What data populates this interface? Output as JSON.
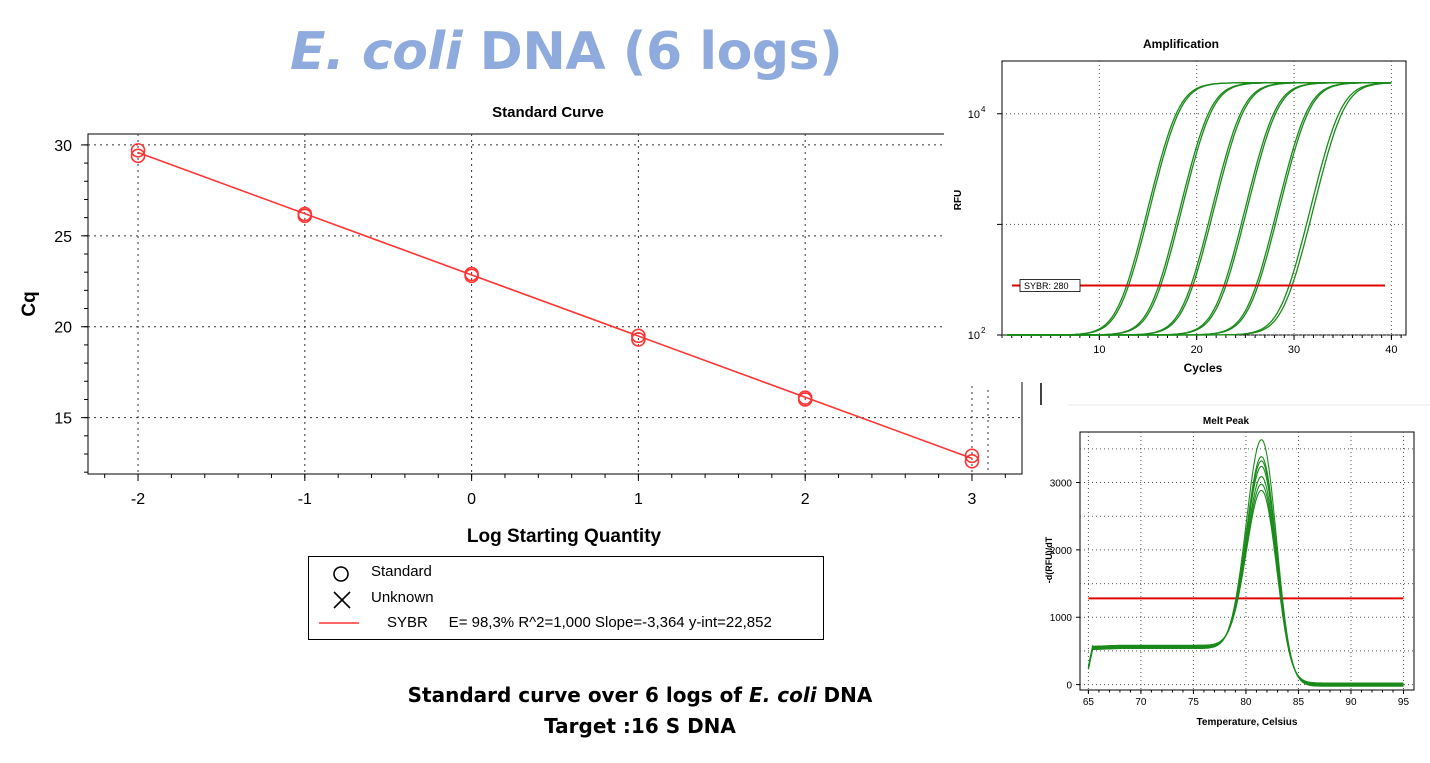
{
  "title": {
    "italic": "E. coli",
    "rest": " DNA (6 logs)"
  },
  "caption": {
    "line1_pre": "Standard curve over 6 logs of ",
    "line1_italic": "E. coli",
    "line1_post": " DNA",
    "line2": "Target :16 S DNA"
  },
  "colors": {
    "title": "#8faadc",
    "standard_curve": "#ff3333",
    "amplification": "#1a8a1a",
    "threshold": "#e00000"
  },
  "legend": {
    "items": [
      {
        "symbol": "circle-icon",
        "label": "Standard"
      },
      {
        "symbol": "cross-icon",
        "label": "Unknown"
      },
      {
        "symbol": "line-icon",
        "label": "SYBR     E= 98,3% R^2=1,000 Slope=-3,364 y-int=22,852"
      }
    ]
  },
  "chart_data": [
    {
      "type": "scatter",
      "title": "Standard Curve",
      "xlabel": "Log Starting Quantity",
      "ylabel": "Cq",
      "xlim": [
        -2.3,
        3.3
      ],
      "ylim": [
        11.9,
        30.6
      ],
      "xticks": [
        -2,
        -1,
        0,
        1,
        2,
        3
      ],
      "yticks": [
        15,
        20,
        25,
        30
      ],
      "grid": true,
      "legend_position": "bottom-center",
      "series": [
        {
          "name": "Standard",
          "x": [
            -2,
            -2,
            -1,
            -1,
            0,
            0,
            1,
            1,
            2,
            2,
            3,
            3
          ],
          "y": [
            29.7,
            29.4,
            26.2,
            26.1,
            22.9,
            22.8,
            19.5,
            19.3,
            16.1,
            16.0,
            12.9,
            12.6
          ]
        },
        {
          "name": "SYBR",
          "line": {
            "slope": -3.364,
            "intercept": 22.852,
            "x_range": [
              -2,
              3
            ]
          }
        }
      ],
      "annotation": "E= 98,3% R^2=1,000 Slope=-3,364 y-int=22,852"
    },
    {
      "type": "line",
      "title": "Amplification",
      "xlabel": "Cycles",
      "ylabel": "RFU",
      "y_scale": "log",
      "xlim": [
        0,
        41.5
      ],
      "ylim": [
        100,
        30000
      ],
      "xticks": [
        10,
        20,
        30,
        40
      ],
      "ytick_labels": [
        "10",
        "10"
      ],
      "ytick_exponents": [
        "2",
        "4"
      ],
      "grid": true,
      "threshold": {
        "label": "SYBR: 280",
        "value": 280
      },
      "curve_model": {
        "baseline": 100,
        "plateau": 19000,
        "slope": 0.93
      },
      "series": [
        {
          "ct": 12.6
        },
        {
          "ct": 12.8
        },
        {
          "ct": 15.9
        },
        {
          "ct": 16.1
        },
        {
          "ct": 19.2
        },
        {
          "ct": 19.4
        },
        {
          "ct": 22.6
        },
        {
          "ct": 22.8
        },
        {
          "ct": 25.9
        },
        {
          "ct": 26.1
        },
        {
          "ct": 29.3
        },
        {
          "ct": 29.6
        }
      ]
    },
    {
      "type": "line",
      "title": "Melt Peak",
      "xlabel": "Temperature, Celsius",
      "ylabel": "-d(RFU)/dT",
      "xlim": [
        64.2,
        96
      ],
      "ylim": [
        -80,
        3750
      ],
      "xticks": [
        65,
        70,
        75,
        80,
        85,
        90,
        95
      ],
      "yticks": [
        0,
        1000,
        2000,
        3000
      ],
      "grid": true,
      "threshold": {
        "value": 1280
      },
      "peak_temperature": 81.5,
      "series": [
        {
          "peak": 3680
        },
        {
          "peak": 3420
        },
        {
          "peak": 3350
        },
        {
          "peak": 3260
        },
        {
          "peak": 3100
        },
        {
          "peak": 2980
        },
        {
          "peak": 2880
        }
      ]
    }
  ]
}
